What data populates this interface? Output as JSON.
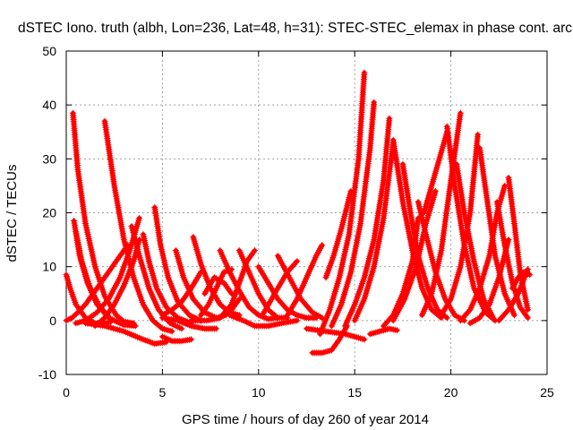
{
  "chart_data": {
    "type": "scatter",
    "title": "dSTEC Iono. truth (albh, Lon=236, Lat=48, h=31): STEC-STEC_elemax in phase cont. arc",
    "xlabel": "GPS time / hours of day 260 of year 2014",
    "ylabel": "dSTEC  / TECUs",
    "xlim": [
      0,
      25
    ],
    "ylim": [
      -10,
      50
    ],
    "xticks": [
      0,
      5,
      10,
      15,
      20,
      25
    ],
    "yticks": [
      -10,
      0,
      10,
      20,
      30,
      40,
      50
    ],
    "grid": true,
    "marker": "+",
    "color": "#ff0000",
    "series": [
      {
        "name": "arc",
        "x": [
          0.0,
          0.2,
          0.5,
          1.0,
          1.5,
          2.0,
          2.3
        ],
        "y": [
          8.5,
          6.0,
          3.0,
          0.5,
          -0.5,
          -0.5,
          -0.3
        ]
      },
      {
        "name": "arc",
        "x": [
          0.0,
          0.3,
          0.6,
          1.0,
          1.5,
          2.0,
          2.6,
          3.2
        ],
        "y": [
          0.0,
          0.5,
          1.5,
          3.0,
          5.5,
          8.0,
          11.0,
          14.0
        ]
      },
      {
        "name": "arc",
        "x": [
          0.35,
          0.6,
          1.0,
          1.5,
          2.0,
          2.6,
          3.0,
          3.5
        ],
        "y": [
          38.5,
          28.0,
          18.0,
          10.0,
          4.5,
          1.0,
          -0.2,
          -0.5
        ]
      },
      {
        "name": "arc",
        "x": [
          0.4,
          0.7,
          1.1,
          1.6,
          2.2,
          2.8
        ],
        "y": [
          18.5,
          12.0,
          7.0,
          3.0,
          0.5,
          -0.5
        ]
      },
      {
        "name": "arc",
        "x": [
          0.5,
          0.8,
          1.2,
          1.7,
          2.3,
          3.0,
          3.6
        ],
        "y": [
          16.5,
          11.0,
          6.5,
          2.8,
          0.3,
          -0.8,
          -1.0
        ]
      },
      {
        "name": "arc",
        "x": [
          0.5,
          1.0,
          1.6,
          2.2,
          2.8,
          3.3,
          3.8
        ],
        "y": [
          -0.5,
          0.0,
          1.5,
          4.0,
          8.0,
          13.0,
          19.0
        ]
      },
      {
        "name": "arc",
        "x": [
          2.0,
          2.5,
          3.0,
          3.5,
          4.0,
          4.5,
          5.0,
          5.5
        ],
        "y": [
          37.0,
          25.0,
          15.0,
          8.0,
          3.0,
          0.0,
          -1.5,
          -2.0
        ]
      },
      {
        "name": "arc",
        "x": [
          1.0,
          2.0,
          3.0,
          4.0,
          4.6,
          5.2
        ],
        "y": [
          -0.5,
          -1.0,
          -2.0,
          -3.5,
          -4.3,
          -4.0
        ]
      },
      {
        "name": "arc",
        "x": [
          1.5,
          2.0,
          2.5,
          3.0,
          3.5,
          3.8
        ],
        "y": [
          -1.0,
          0.5,
          3.0,
          6.5,
          11.0,
          15.0
        ]
      },
      {
        "name": "arc",
        "x": [
          3.4,
          3.8,
          4.3,
          4.8,
          5.4,
          6.0
        ],
        "y": [
          17.5,
          12.0,
          6.0,
          2.0,
          -0.5,
          -1.5
        ]
      },
      {
        "name": "arc",
        "x": [
          4.0,
          4.3,
          4.7,
          5.2,
          5.8,
          6.5
        ],
        "y": [
          16.0,
          11.0,
          6.0,
          2.5,
          0.5,
          -0.5
        ]
      },
      {
        "name": "arc",
        "x": [
          4.6,
          4.9,
          5.3,
          5.8,
          6.4,
          7.0
        ],
        "y": [
          21.0,
          14.0,
          8.0,
          3.5,
          1.0,
          0.0
        ]
      },
      {
        "name": "arc",
        "x": [
          5.0,
          5.5,
          6.0,
          6.5
        ],
        "y": [
          -3.0,
          -3.8,
          -3.8,
          -3.5
        ]
      },
      {
        "name": "arc",
        "x": [
          5.0,
          5.5,
          6.0,
          6.5,
          7.0
        ],
        "y": [
          1.0,
          2.0,
          3.5,
          6.0,
          9.0
        ]
      },
      {
        "name": "arc",
        "x": [
          5.7,
          6.1,
          6.6,
          7.2,
          7.8,
          8.3
        ],
        "y": [
          13.0,
          8.0,
          4.0,
          1.5,
          0.5,
          1.0
        ]
      },
      {
        "name": "arc",
        "x": [
          5.0,
          5.8,
          6.5,
          7.2,
          7.8
        ],
        "y": [
          0.5,
          0.0,
          -1.0,
          -1.5,
          -1.5
        ]
      },
      {
        "name": "arc",
        "x": [
          6.6,
          7.0,
          7.5,
          8.0,
          8.5,
          9.0
        ],
        "y": [
          15.5,
          10.5,
          6.0,
          3.0,
          1.5,
          1.0
        ]
      },
      {
        "name": "arc",
        "x": [
          7.0,
          7.4,
          7.8,
          8.2,
          8.6
        ],
        "y": [
          1.0,
          3.0,
          6.0,
          9.0,
          9.5
        ]
      },
      {
        "name": "arc",
        "x": [
          6.5,
          7.3,
          8.0,
          8.6,
          9.0
        ],
        "y": [
          0.0,
          0.0,
          0.5,
          2.0,
          4.0
        ]
      },
      {
        "name": "arc",
        "x": [
          7.2,
          7.7,
          8.2,
          8.6
        ],
        "y": [
          5.0,
          8.0,
          7.0,
          5.0
        ]
      },
      {
        "name": "arc",
        "x": [
          8.0,
          8.5,
          9.0,
          9.5,
          10.0,
          10.5,
          11.0
        ],
        "y": [
          13.0,
          9.0,
          5.5,
          2.5,
          1.0,
          0.3,
          0.5
        ]
      },
      {
        "name": "arc",
        "x": [
          8.0,
          8.6,
          9.0,
          9.4,
          9.8
        ],
        "y": [
          0.5,
          3.0,
          7.0,
          11.0,
          13.0
        ]
      },
      {
        "name": "arc",
        "x": [
          9.0,
          9.5,
          10.0,
          10.5,
          11.0,
          11.5
        ],
        "y": [
          13.0,
          9.0,
          5.0,
          2.0,
          0.5,
          0.5
        ]
      },
      {
        "name": "arc",
        "x": [
          8.5,
          9.2,
          9.8,
          10.5,
          11.2,
          12.0
        ],
        "y": [
          1.0,
          0.0,
          -1.0,
          -1.0,
          -0.5,
          0.0
        ]
      },
      {
        "name": "arc",
        "x": [
          10.2,
          10.6,
          11.0,
          11.5,
          12.0
        ],
        "y": [
          1.0,
          3.5,
          6.0,
          9.0,
          11.0
        ]
      },
      {
        "name": "arc",
        "x": [
          10.0,
          10.5,
          11.0,
          11.5,
          12.0,
          12.5,
          13.0
        ],
        "y": [
          10.0,
          7.0,
          4.0,
          2.0,
          1.0,
          0.5,
          0.5
        ]
      },
      {
        "name": "arc",
        "x": [
          11.5,
          12.0,
          12.5,
          13.0,
          13.3
        ],
        "y": [
          1.0,
          4.0,
          8.0,
          12.0,
          14.0
        ]
      },
      {
        "name": "arc",
        "x": [
          11.0,
          11.6,
          12.2,
          12.8,
          13.3
        ],
        "y": [
          12.0,
          8.0,
          4.0,
          1.5,
          0.5
        ]
      },
      {
        "name": "arc",
        "x": [
          12.8,
          13.3,
          13.8,
          14.2,
          14.6
        ],
        "y": [
          -6.0,
          -6.0,
          -5.5,
          -3.5,
          -1.0
        ]
      },
      {
        "name": "arc",
        "x": [
          12.5,
          13.5,
          14.5,
          15.0,
          15.5
        ],
        "y": [
          -1.5,
          -2.0,
          -2.5,
          -3.0,
          -3.5
        ]
      },
      {
        "name": "arc",
        "x": [
          13.2,
          13.7,
          14.2,
          14.7,
          15.2,
          15.5
        ],
        "y": [
          -2.5,
          2.0,
          8.0,
          16.0,
          30.0,
          46.0
        ]
      },
      {
        "name": "arc",
        "x": [
          13.5,
          13.9,
          14.3,
          14.8
        ],
        "y": [
          8.0,
          12.0,
          17.0,
          24.0
        ]
      },
      {
        "name": "arc",
        "x": [
          13.8,
          14.3,
          14.8,
          15.3,
          15.8,
          16.0
        ],
        "y": [
          -1.0,
          3.0,
          9.0,
          18.0,
          32.0,
          40.5
        ]
      },
      {
        "name": "arc",
        "x": [
          14.5,
          15.0,
          15.5,
          16.0,
          16.5,
          16.8
        ],
        "y": [
          -1.0,
          3.0,
          8.0,
          15.0,
          26.0,
          37.5
        ]
      },
      {
        "name": "arc",
        "x": [
          15.0,
          15.5,
          16.0,
          16.5,
          17.0
        ],
        "y": [
          0.0,
          4.0,
          10.0,
          19.0,
          33.0
        ]
      },
      {
        "name": "arc",
        "x": [
          15.8,
          16.3,
          16.8,
          17.2
        ],
        "y": [
          -2.5,
          -2.0,
          -1.5,
          -1.8
        ]
      },
      {
        "name": "arc",
        "x": [
          16.5,
          17.0,
          17.5,
          18.0,
          18.3
        ],
        "y": [
          -1.0,
          1.0,
          5.0,
          11.0,
          19.0
        ]
      },
      {
        "name": "arc",
        "x": [
          17.0,
          17.5,
          18.0,
          18.5,
          19.0,
          19.5
        ],
        "y": [
          33.5,
          22.0,
          13.0,
          6.0,
          2.0,
          0.5
        ]
      },
      {
        "name": "arc",
        "x": [
          17.5,
          17.9,
          18.3,
          18.8,
          19.3,
          19.8
        ],
        "y": [
          29.0,
          20.0,
          12.0,
          6.0,
          2.0,
          0.5
        ]
      },
      {
        "name": "arc",
        "x": [
          17.0,
          17.6,
          18.2,
          18.7,
          19.2
        ],
        "y": [
          0.0,
          4.0,
          10.0,
          18.0,
          24.0
        ]
      },
      {
        "name": "arc",
        "x": [
          18.3,
          18.7,
          19.2,
          19.7,
          20.2,
          20.7
        ],
        "y": [
          22.0,
          16.0,
          9.0,
          4.0,
          1.0,
          0.0
        ]
      },
      {
        "name": "arc",
        "x": [
          18.6,
          19.0,
          19.4,
          19.8
        ],
        "y": [
          20.0,
          25.0,
          30.0,
          35.0
        ]
      },
      {
        "name": "arc",
        "x": [
          18.5,
          19.0,
          19.5,
          20.0,
          20.5
        ],
        "y": [
          1.0,
          5.0,
          13.0,
          26.0,
          38.5
        ]
      },
      {
        "name": "arc",
        "x": [
          19.8,
          20.2,
          20.7,
          21.2,
          21.8,
          22.3
        ],
        "y": [
          36.0,
          25.0,
          14.0,
          6.0,
          1.5,
          0.0
        ]
      },
      {
        "name": "arc",
        "x": [
          20.3,
          20.7,
          21.2,
          21.7,
          22.2
        ],
        "y": [
          29.0,
          20.0,
          11.0,
          4.0,
          0.5
        ]
      },
      {
        "name": "arc",
        "x": [
          19.5,
          20.0,
          20.5,
          21.0,
          21.4
        ],
        "y": [
          1.0,
          4.0,
          10.0,
          20.0,
          34.5
        ]
      },
      {
        "name": "arc",
        "x": [
          21.5,
          21.9,
          22.3,
          22.8,
          23.3
        ],
        "y": [
          32.0,
          22.0,
          12.0,
          5.0,
          1.0
        ]
      },
      {
        "name": "arc",
        "x": [
          20.5,
          21.0,
          21.5,
          22.0,
          22.4,
          22.8
        ],
        "y": [
          0.0,
          2.0,
          6.0,
          12.0,
          20.0,
          25.0
        ]
      },
      {
        "name": "arc",
        "x": [
          21.0,
          21.5,
          22.0,
          22.5,
          23.0
        ],
        "y": [
          -0.5,
          0.5,
          3.0,
          8.0,
          15.0
        ]
      },
      {
        "name": "arc",
        "x": [
          22.4,
          22.8,
          23.2,
          23.6,
          24.0
        ],
        "y": [
          22.0,
          14.0,
          7.0,
          2.5,
          0.5
        ]
      },
      {
        "name": "arc",
        "x": [
          23.0,
          23.3,
          23.6,
          24.0
        ],
        "y": [
          26.5,
          18.0,
          9.0,
          2.0
        ]
      },
      {
        "name": "arc",
        "x": [
          22.5,
          23.0,
          23.5,
          24.0
        ],
        "y": [
          0.0,
          2.0,
          5.0,
          9.5
        ]
      },
      {
        "name": "arc",
        "x": [
          23.2,
          23.5,
          23.8,
          24.1
        ],
        "y": [
          6.0,
          8.0,
          9.0,
          8.5
        ]
      }
    ]
  }
}
